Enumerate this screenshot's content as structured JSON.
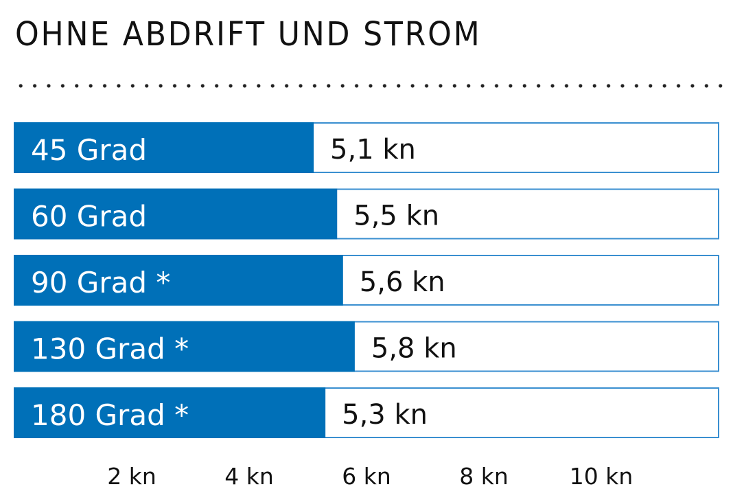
{
  "chart_data": {
    "type": "bar",
    "orientation": "horizontal",
    "title": "OHNE ABDRIFT UND STROM",
    "categories": [
      "45 Grad",
      "60 Grad",
      "90 Grad *",
      "130 Grad *",
      "180 Grad *"
    ],
    "values": [
      5.1,
      5.5,
      5.6,
      5.8,
      5.3
    ],
    "value_labels": [
      "5,1 kn",
      "5,5 kn",
      "5,6 kn",
      "5,8 kn",
      "5,3 kn"
    ],
    "x_ticks": [
      2,
      4,
      6,
      8,
      10
    ],
    "x_tick_labels": [
      "2 kn",
      "4 kn",
      "6 kn",
      "8 kn",
      "10 kn"
    ],
    "xlim": [
      0,
      12
    ],
    "xlabel": "",
    "ylabel": "",
    "grid": false,
    "colors": {
      "bar": "#0070b8",
      "track_border": "#3a8fd0"
    }
  }
}
